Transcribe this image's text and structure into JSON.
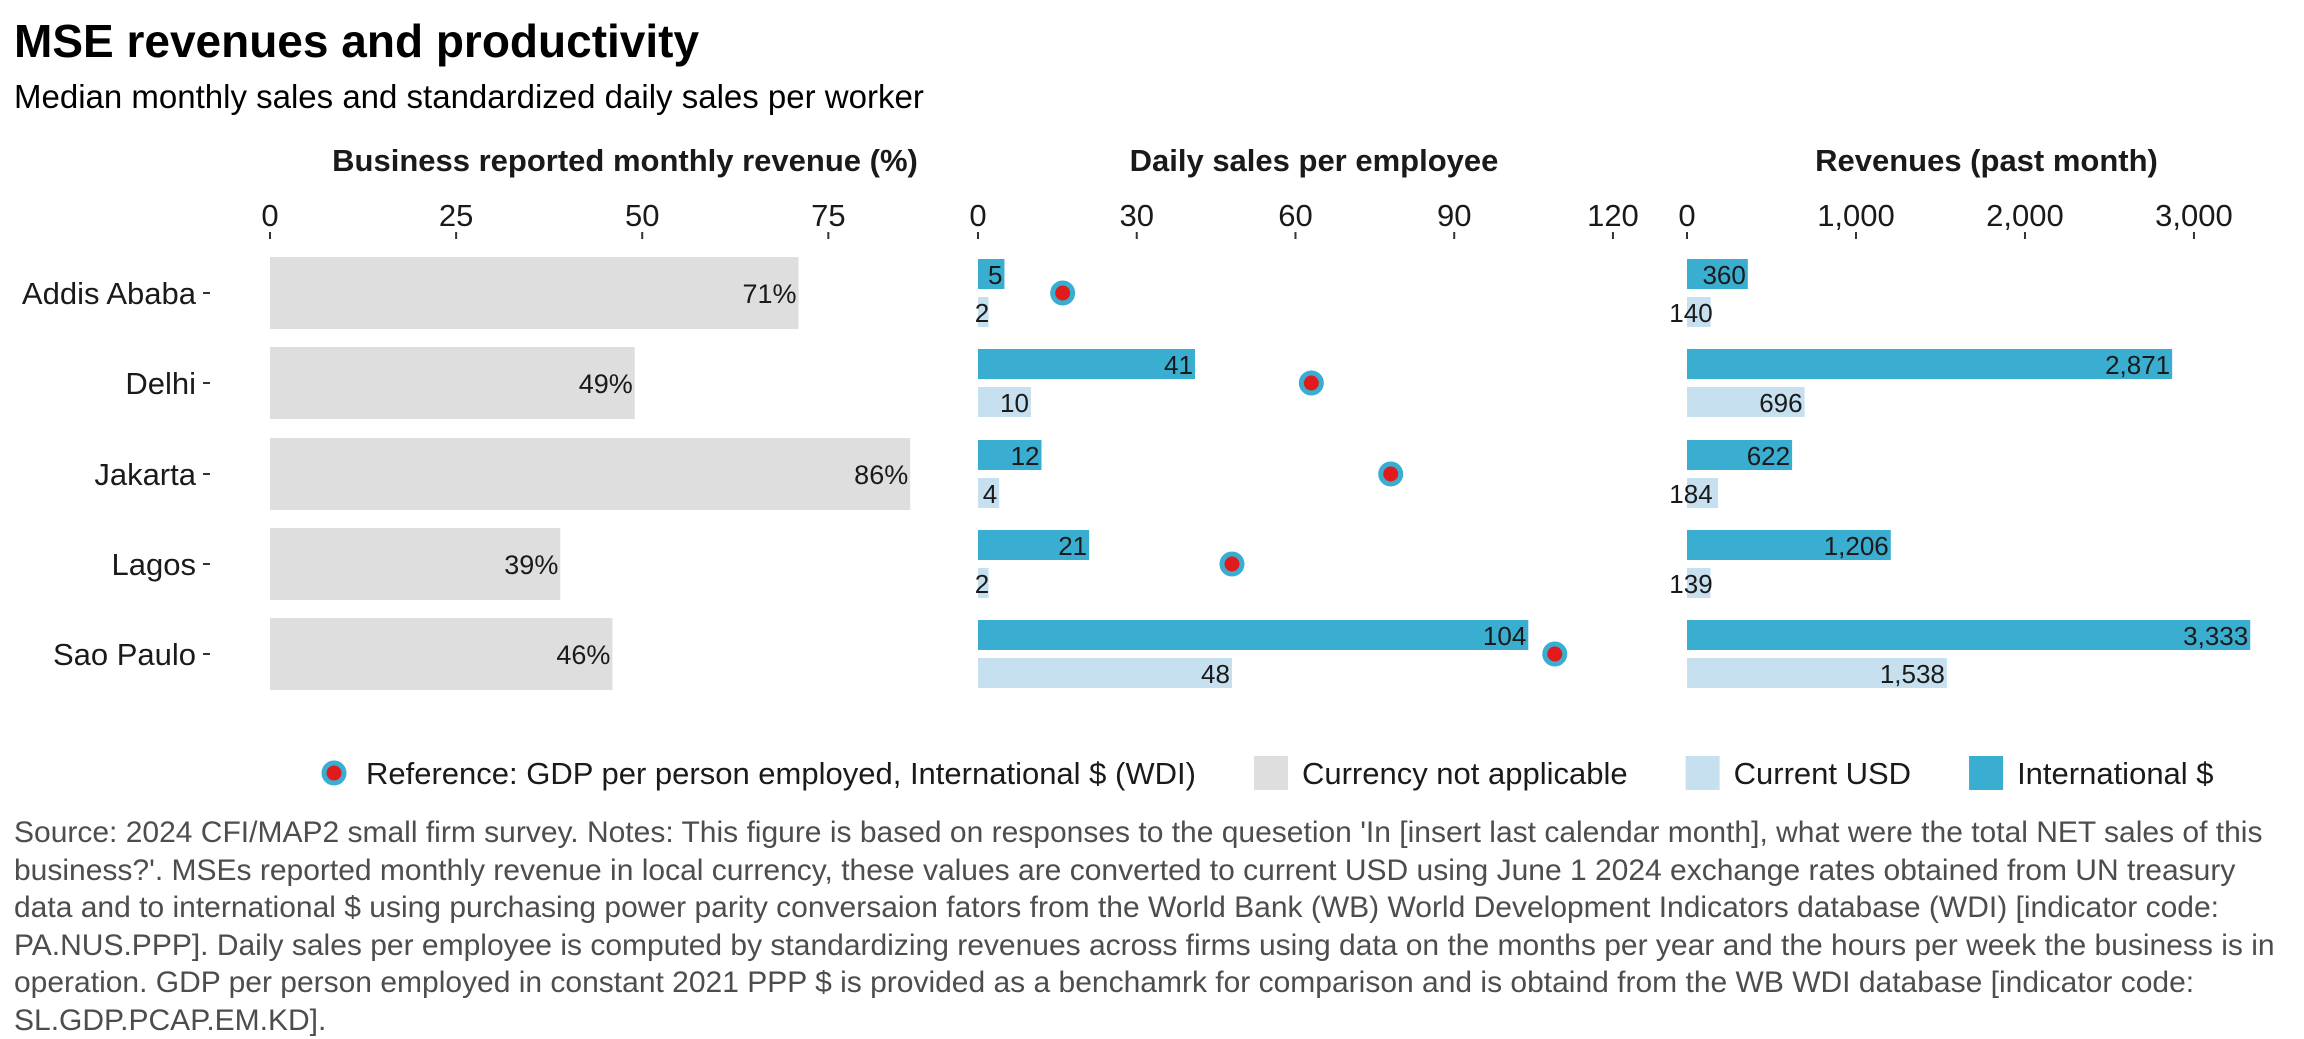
{
  "title": "MSE revenues and productivity",
  "subtitle": "Median monthly sales and standardized daily sales per worker",
  "source": "Source: 2024 CFI/MAP2 small firm survey. Notes: This figure is based on responses to the quesetion 'In [insert last calendar month], what were the total NET sales of this business?'. MSEs reported monthly revenue in local currency, these values are converted to current USD using June 1 2024 exchange rates obtained from UN treasury data and to international $ using purchasing power parity conversaion fators from the World Bank (WB) World Development Indicators database (WDI) [indicator code: PA.NUS.PPP]. Daily sales per employee is computed by standardizing revenues across firms using data on the months per year and the hours per week the business is in operation. GDP per person employed in constant 2021 PPP $ is provided as a benchamrk for comparison and is obtaind from the WB WDI database [indicator code: SL.GDP.PCAP.EM.KD].",
  "colors": {
    "international": "#3AAED1",
    "current_usd": "#C6E0EF",
    "not_applicable": "#DEDEDE",
    "reference_fill": "#E31A1C",
    "reference_ring": "#3AAED1"
  },
  "chart_data": [
    {
      "type": "bar",
      "title": "Business reported monthly revenue (%)",
      "categories": [
        "Addis Ababa",
        "Delhi",
        "Jakarta",
        "Lagos",
        "Sao Paulo"
      ],
      "series": [
        {
          "name": "Currency not applicable",
          "values": [
            71,
            49,
            86,
            39,
            46
          ],
          "labels": [
            "71%",
            "49%",
            "86%",
            "39%",
            "46%"
          ]
        }
      ],
      "xlim": [
        0,
        90
      ],
      "ticks": [
        0,
        25,
        50,
        75
      ],
      "tick_labels": [
        "0",
        "25",
        "50",
        "75"
      ]
    },
    {
      "type": "bar",
      "title": "Daily sales per employee",
      "categories": [
        "Addis Ababa",
        "Delhi",
        "Jakarta",
        "Lagos",
        "Sao Paulo"
      ],
      "series": [
        {
          "name": "International $",
          "values": [
            5,
            41,
            12,
            21,
            104
          ],
          "labels": [
            "5",
            "41",
            "12",
            "21",
            "104"
          ]
        },
        {
          "name": "Current USD",
          "values": [
            2,
            10,
            4,
            2,
            48
          ],
          "labels": [
            "2",
            "10",
            "4",
            "2",
            "48"
          ]
        }
      ],
      "reference": {
        "name": "Reference: GDP per person employed, International $ (WDI)",
        "values": [
          16,
          63,
          78,
          48,
          109
        ]
      },
      "xlim": [
        0,
        127
      ],
      "ticks": [
        0,
        30,
        60,
        90,
        120
      ],
      "tick_labels": [
        "0",
        "30",
        "60",
        "90",
        "120"
      ]
    },
    {
      "type": "bar",
      "title": "Revenues (past month)",
      "categories": [
        "Addis Ababa",
        "Delhi",
        "Jakarta",
        "Lagos",
        "Sao Paulo"
      ],
      "series": [
        {
          "name": "International $",
          "values": [
            360,
            2871,
            622,
            1206,
            3333
          ],
          "labels": [
            "360",
            "2,871",
            "622",
            "1,206",
            "3,333"
          ]
        },
        {
          "name": "Current USD",
          "values": [
            140,
            696,
            184,
            139,
            1538
          ],
          "labels": [
            "140",
            "696",
            "184",
            "139",
            "1,538"
          ]
        }
      ],
      "xlim": [
        0,
        3450
      ],
      "ticks": [
        0,
        1000,
        2000,
        3000
      ],
      "tick_labels": [
        "0",
        "1,000",
        "2,000",
        "3,000"
      ]
    }
  ],
  "legend": {
    "position": "bottom",
    "items": [
      {
        "key": "reference",
        "label": "Reference: GDP per person employed, International $ (WDI)"
      },
      {
        "key": "not_applicable",
        "label": "Currency not applicable"
      },
      {
        "key": "current_usd",
        "label": "Current USD"
      },
      {
        "key": "international",
        "label": "International $"
      }
    ]
  }
}
